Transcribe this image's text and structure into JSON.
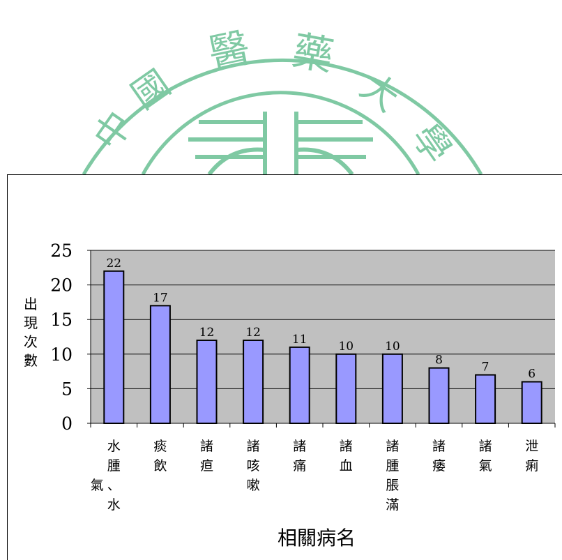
{
  "watermark": {
    "text_chars": [
      "中",
      "國",
      "醫",
      "藥",
      "大",
      "學"
    ],
    "color": "#7fc9a3"
  },
  "chart_data": {
    "type": "bar",
    "title": "",
    "xlabel": "相關病名",
    "ylabel": "出現次數",
    "ylabel_chars": [
      "出",
      "現",
      "次",
      "數"
    ],
    "categories": [
      "水腫、水氣",
      "痰飲",
      "諸疸",
      "諸咳嗽",
      "諸痛",
      "諸血",
      "諸腫脹滿",
      "諸痿",
      "諸氣",
      "泄痢"
    ],
    "values": [
      22,
      17,
      12,
      12,
      11,
      10,
      10,
      8,
      7,
      6
    ],
    "value_labels": [
      "22",
      "17",
      "12",
      "12",
      "11",
      "10",
      "10",
      "8",
      "7",
      "6"
    ],
    "ylim": [
      0,
      25
    ],
    "yticks": [
      0,
      5,
      10,
      15,
      20,
      25
    ],
    "ytick_labels": [
      "0",
      "5",
      "10",
      "15",
      "20",
      "25"
    ],
    "grid": true,
    "legend": false,
    "colors": {
      "bar_fill": "#9999ff",
      "bar_stroke": "#000000",
      "plot_bg": "#c0c0c0",
      "grid": "#000000"
    }
  }
}
